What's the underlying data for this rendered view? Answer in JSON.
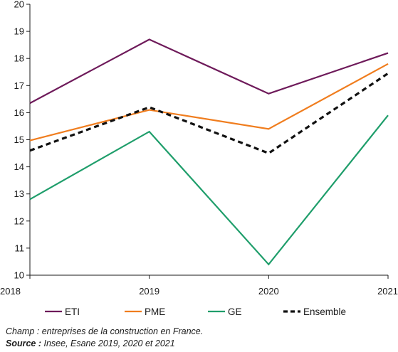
{
  "chart_data": {
    "type": "line",
    "x": [
      "2018",
      "2019",
      "2020",
      "2021"
    ],
    "ylim": [
      10,
      20
    ],
    "yticks": [
      10,
      11,
      12,
      13,
      14,
      15,
      16,
      17,
      18,
      19,
      20
    ],
    "grid": false,
    "legend_position": "bottom",
    "series": [
      {
        "name": "ETI",
        "values": [
          16.35,
          18.7,
          16.7,
          18.2
        ],
        "color": "#6e1a5a",
        "dash": "solid"
      },
      {
        "name": "PME",
        "values": [
          14.97,
          16.1,
          15.4,
          17.8
        ],
        "color": "#f07d1e",
        "dash": "solid"
      },
      {
        "name": "GE",
        "values": [
          12.8,
          15.3,
          10.4,
          15.9
        ],
        "color": "#1f9e6b",
        "dash": "solid"
      },
      {
        "name": "Ensemble",
        "values": [
          14.6,
          16.2,
          14.5,
          17.45
        ],
        "color": "#111111",
        "dash": "dashed"
      }
    ]
  },
  "notes": {
    "champ": "Champ : entreprises de la construction en France.",
    "source_label": "Source :",
    "source_text": " Insee, Esane 2019, 2020 et 2021"
  }
}
